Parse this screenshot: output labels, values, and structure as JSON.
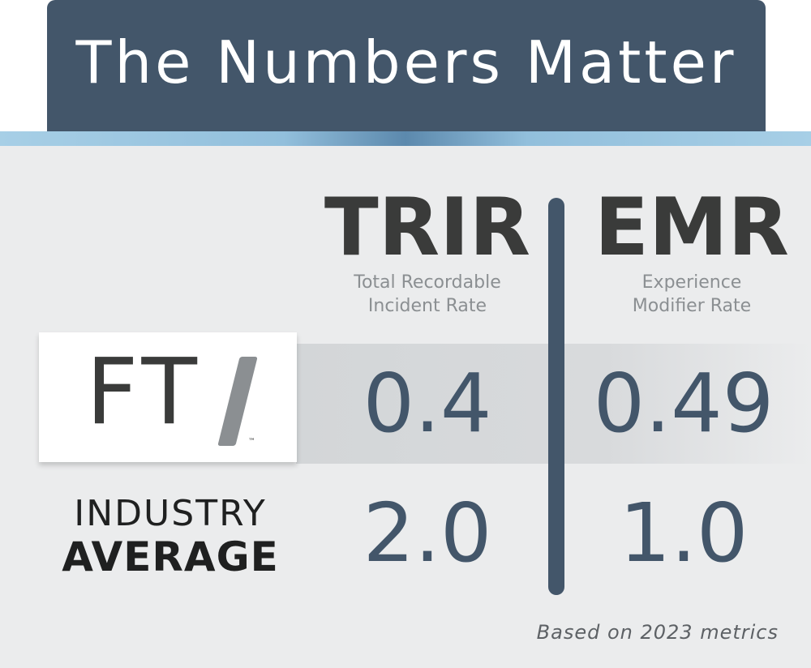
{
  "title": "The Numbers Matter",
  "columns": {
    "trir": {
      "heading": "TRIR",
      "sub_line1": "Total Recordable",
      "sub_line2": "Incident Rate"
    },
    "emr": {
      "heading": "EMR",
      "sub_line1": "Experience",
      "sub_line2": "Modifier Rate"
    }
  },
  "logo": {
    "letters": "FT",
    "trademark": "™"
  },
  "rows": {
    "fti": {
      "trir": "0.4",
      "emr": "0.49"
    },
    "industry": {
      "label_line1": "INDUSTRY",
      "label_line2": "AVERAGE",
      "trir": "2.0",
      "emr": "1.0"
    }
  },
  "footnote": "Based on 2023 metrics",
  "colors": {
    "header": "#43566a",
    "accent": "#92bfdc",
    "text_dark": "#3a3b3a",
    "value": "#43566a",
    "muted": "#8b8f92"
  },
  "icons": {
    "logo": "fti-logo"
  }
}
